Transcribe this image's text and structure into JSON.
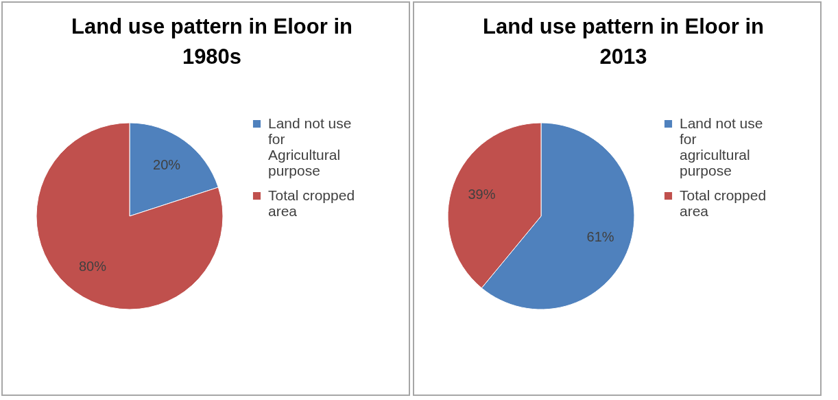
{
  "chart_data": [
    {
      "type": "pie",
      "title": "Land use pattern in Eloor in 1980s",
      "categories": [
        "Land not use for Agricultural purpose",
        "Total cropped area"
      ],
      "values": [
        20,
        80
      ],
      "colors": [
        "#4f81bd",
        "#c0504d"
      ],
      "value_labels": [
        "20%",
        "80%"
      ],
      "legend": "right"
    },
    {
      "type": "pie",
      "title": "Land use pattern in Eloor in 2013",
      "categories": [
        "Land not use for agricultural purpose",
        "Total cropped area"
      ],
      "values": [
        61,
        39
      ],
      "colors": [
        "#4f81bd",
        "#c0504d"
      ],
      "value_labels": [
        "61%",
        "39%"
      ],
      "legend": "right"
    }
  ]
}
